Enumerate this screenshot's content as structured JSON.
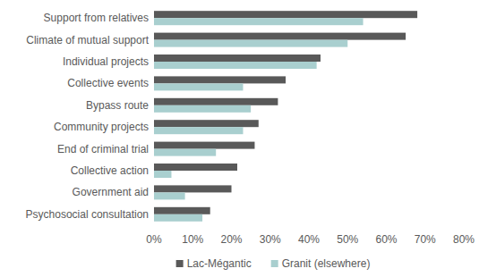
{
  "chart_data": {
    "type": "bar",
    "orientation": "horizontal",
    "categories": [
      "Support from relatives",
      "Climate of mutual support",
      "Individual projects",
      "Collective events",
      "Bypass route",
      "Community projects",
      "End of criminal trial",
      "Collective action",
      "Government aid",
      "Psychosocial consultation"
    ],
    "series": [
      {
        "name": "Lac-Mégantic",
        "color": "#595959",
        "values": [
          68,
          65,
          43,
          34,
          32,
          27,
          26,
          21.5,
          20,
          14.5
        ]
      },
      {
        "name": "Granit (elsewhere)",
        "color": "#a9cfcf",
        "values": [
          54,
          50,
          42,
          23,
          25,
          23,
          16,
          4.5,
          8,
          12.5
        ]
      }
    ],
    "xlim": [
      0,
      80
    ],
    "xticks": [
      {
        "value": 0,
        "label": "0%"
      },
      {
        "value": 10,
        "label": "10%"
      },
      {
        "value": 20,
        "label": "20%"
      },
      {
        "value": 30,
        "label": "30%"
      },
      {
        "value": 40,
        "label": "40%"
      },
      {
        "value": 50,
        "label": "50%"
      },
      {
        "value": 60,
        "label": "60%"
      },
      {
        "value": 70,
        "label": "70%"
      },
      {
        "value": 80,
        "label": "80%"
      }
    ],
    "grid": false,
    "legend": "bottom"
  }
}
